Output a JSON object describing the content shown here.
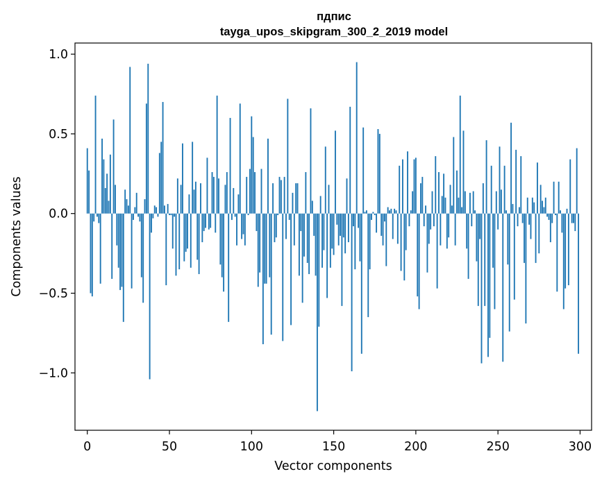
{
  "chart_data": {
    "type": "bar",
    "title_line1": "пдпис",
    "title_line2": "tayga_upos_skipgram_300_2_2019 model",
    "xlabel": "Vector components",
    "ylabel": "Components values",
    "xlim": [
      -7.5,
      307
    ],
    "ylim": [
      -1.36,
      1.07
    ],
    "xticks": [
      0,
      50,
      100,
      150,
      200,
      250,
      300
    ],
    "xtick_labels": [
      "0",
      "50",
      "100",
      "150",
      "200",
      "250",
      "300"
    ],
    "yticks": [
      -1.0,
      -0.5,
      0.0,
      0.5,
      1.0
    ],
    "ytick_labels": [
      "−1.0",
      "−0.5",
      "0.0",
      "0.5",
      "1.0"
    ],
    "bar_color": "#1f77b4",
    "values": [
      0.41,
      0.27,
      -0.5,
      -0.52,
      -0.05,
      0.74,
      -0.02,
      -0.06,
      -0.44,
      0.47,
      0.34,
      0.16,
      0.25,
      0.08,
      0.37,
      -0.41,
      0.59,
      0.18,
      -0.2,
      -0.34,
      -0.48,
      -0.46,
      -0.68,
      0.15,
      0.09,
      0.05,
      0.92,
      -0.47,
      -0.04,
      0.04,
      0.13,
      -0.02,
      -0.05,
      -0.4,
      -0.56,
      0.09,
      0.69,
      0.94,
      -1.04,
      -0.12,
      -0.03,
      0.05,
      0.04,
      -0.02,
      0.38,
      0.45,
      0.7,
      0.05,
      -0.45,
      0.06,
      -0.01,
      -0.01,
      -0.22,
      -0.02,
      -0.39,
      0.22,
      -0.35,
      0.18,
      0.44,
      -0.3,
      -0.24,
      -0.22,
      0.12,
      -0.34,
      0.45,
      0.15,
      0.2,
      -0.29,
      -0.38,
      0.19,
      -0.18,
      -0.11,
      -0.09,
      0.35,
      -0.1,
      -0.09,
      0.26,
      0.23,
      -0.12,
      0.74,
      0.22,
      -0.32,
      -0.4,
      -0.49,
      0.18,
      0.26,
      -0.68,
      0.6,
      -0.04,
      0.16,
      -0.02,
      -0.2,
      0.12,
      0.69,
      -0.16,
      -0.13,
      -0.2,
      0.23,
      -0.01,
      0.28,
      0.61,
      0.48,
      0.26,
      -0.11,
      -0.46,
      -0.37,
      0.28,
      -0.82,
      -0.44,
      -0.44,
      0.47,
      -0.4,
      -0.76,
      0.19,
      -0.18,
      -0.15,
      -0.01,
      0.23,
      0.21,
      -0.8,
      0.23,
      -0.16,
      0.72,
      -0.04,
      -0.7,
      0.13,
      -0.2,
      0.19,
      0.19,
      -0.39,
      -0.11,
      -0.56,
      -0.27,
      0.26,
      -0.31,
      -0.38,
      0.66,
      0.08,
      -0.14,
      -0.39,
      -1.24,
      -0.71,
      0.11,
      -0.34,
      -0.23,
      0.42,
      -0.53,
      0.18,
      -0.34,
      -0.22,
      -0.26,
      0.52,
      -0.07,
      -0.2,
      -0.14,
      -0.58,
      -0.15,
      -0.25,
      0.22,
      -0.18,
      0.67,
      -0.99,
      -0.08,
      -0.35,
      0.95,
      -0.09,
      -0.3,
      -0.88,
      0.54,
      0.01,
      0.02,
      -0.65,
      -0.35,
      -0.04,
      0.01,
      -0.01,
      -0.12,
      0.53,
      0.5,
      -0.14,
      -0.2,
      -0.05,
      -0.33,
      0.04,
      0.02,
      0.03,
      -0.16,
      0.03,
      0.02,
      -0.19,
      0.3,
      -0.36,
      0.34,
      -0.42,
      -0.23,
      0.39,
      -0.08,
      0.02,
      0.14,
      0.34,
      0.35,
      -0.52,
      -0.6,
      0.19,
      0.23,
      -0.08,
      0.05,
      -0.37,
      -0.19,
      -0.1,
      0.14,
      -0.08,
      0.36,
      -0.47,
      0.26,
      -0.2,
      0.11,
      0.25,
      0.1,
      -0.22,
      -0.15,
      0.18,
      0.05,
      0.48,
      -0.2,
      0.27,
      0.1,
      0.74,
      0.04,
      0.52,
      0.14,
      -0.22,
      -0.41,
      0.13,
      -0.08,
      0.14,
      0.02,
      -0.3,
      -0.58,
      -0.16,
      -0.94,
      0.19,
      -0.58,
      0.46,
      -0.9,
      -0.78,
      0.3,
      -0.34,
      -0.6,
      0.14,
      -0.1,
      0.42,
      0.15,
      -0.93,
      0.3,
      0.02,
      -0.32,
      -0.74,
      0.57,
      0.06,
      -0.54,
      0.4,
      -0.08,
      0.04,
      0.36,
      -0.06,
      -0.31,
      -0.69,
      0.1,
      -0.07,
      -0.16,
      0.1,
      0.07,
      -0.31,
      0.32,
      -0.25,
      0.18,
      0.08,
      0.04,
      0.1,
      -0.02,
      -0.04,
      -0.18,
      -0.06,
      0.2,
      -0.01,
      -0.49,
      0.2,
      0.02,
      -0.12,
      -0.6,
      -0.47,
      0.03,
      -0.45,
      0.34,
      -0.06,
      -0.06,
      -0.11,
      0.41,
      -0.88
    ]
  }
}
